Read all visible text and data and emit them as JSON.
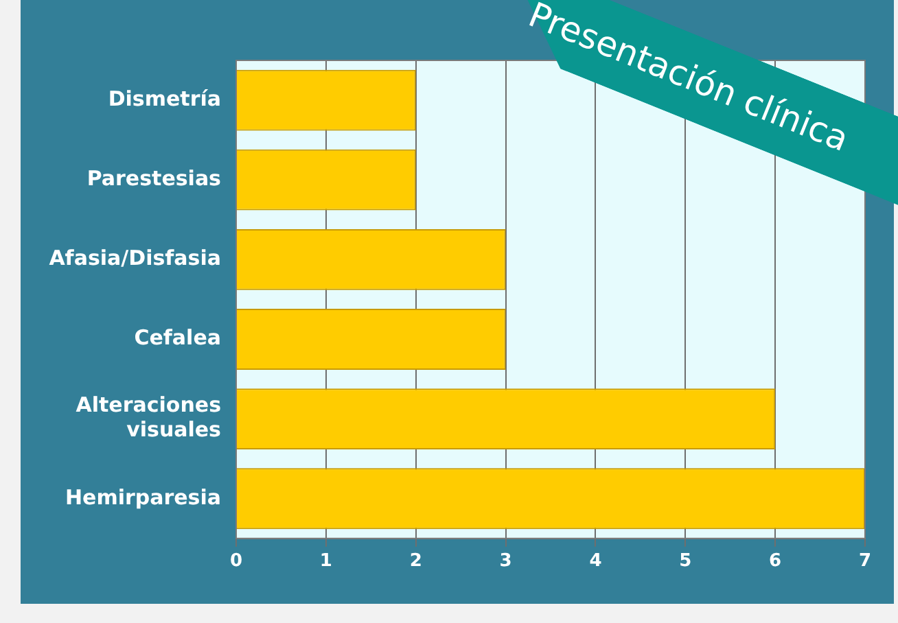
{
  "chart_data": {
    "type": "bar",
    "orientation": "horizontal",
    "title": "Presentación clínica",
    "categories": [
      "Dismetría",
      "Parestesias",
      "Afasia/Disfasia",
      "Cefalea",
      "Alteraciones visuales",
      "Hemirparesia"
    ],
    "values": [
      2,
      2,
      3,
      3,
      6,
      7
    ],
    "color": "#ffcc00",
    "xlim": [
      0,
      7
    ],
    "xticks": [
      0,
      1,
      2,
      3,
      4,
      5,
      6,
      7
    ],
    "grid": "x"
  }
}
